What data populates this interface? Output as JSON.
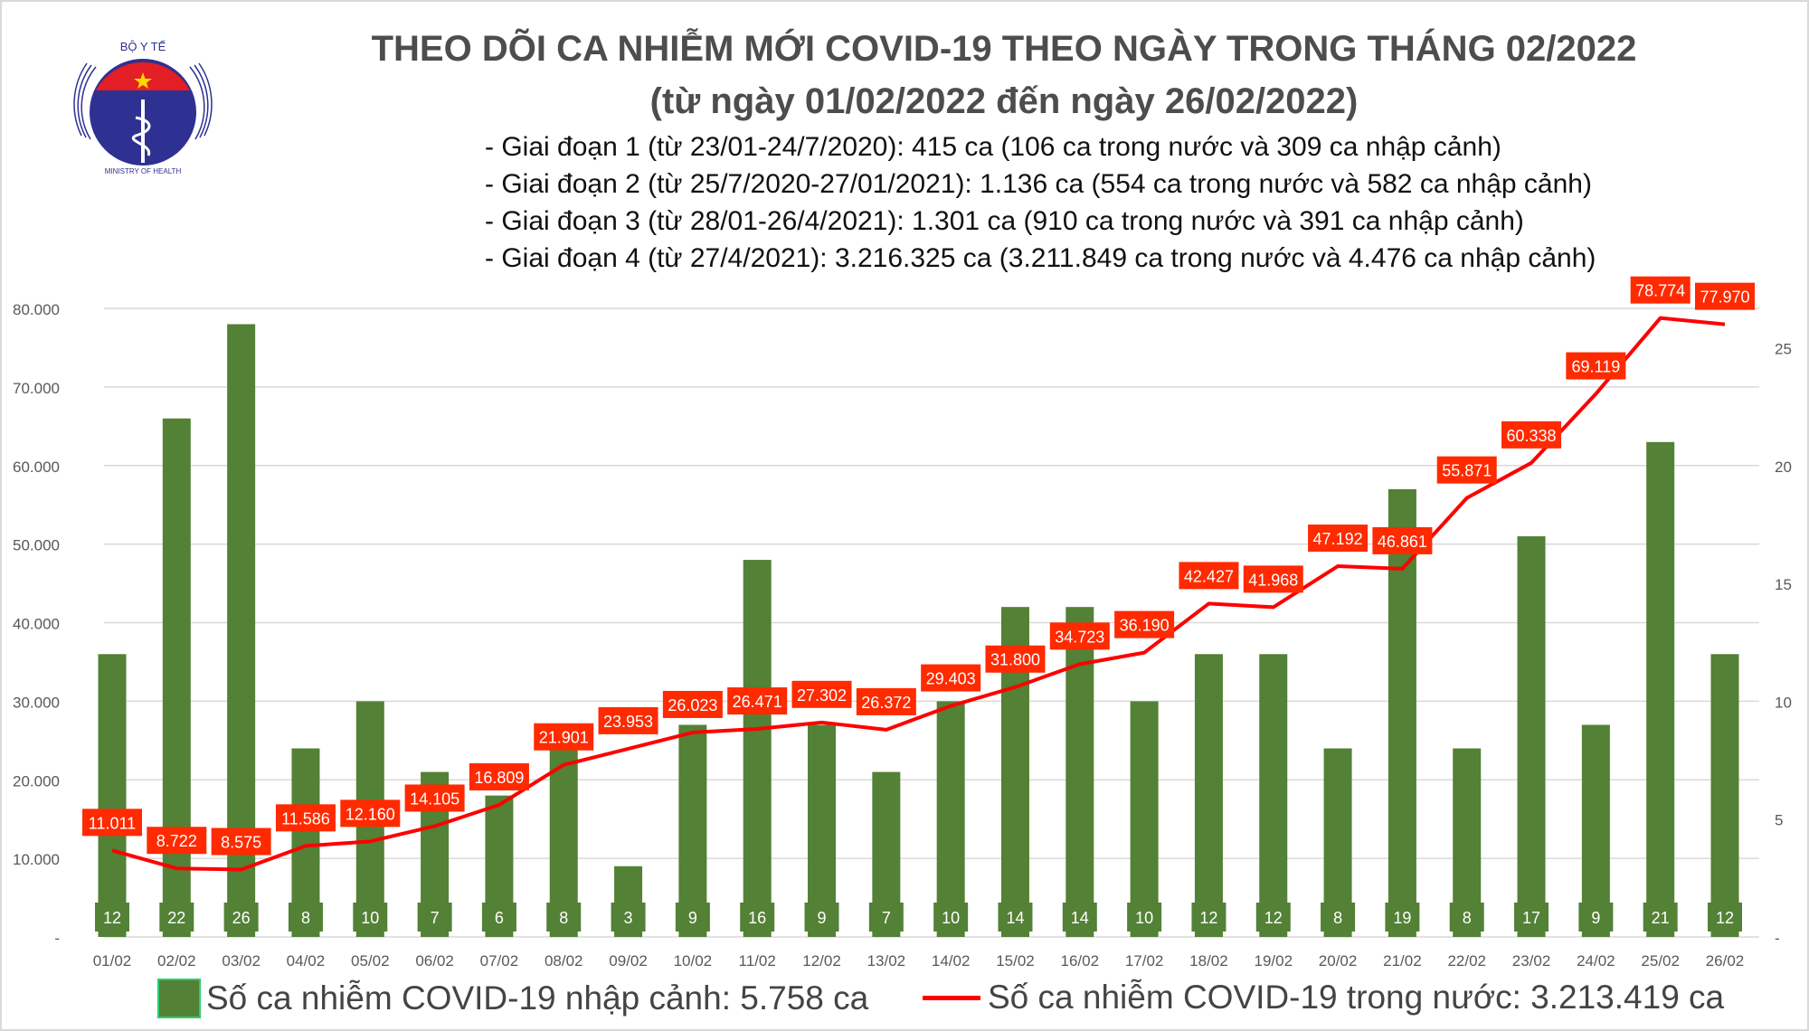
{
  "logo": {
    "text_top": "BỘ Y TẾ",
    "text_bottom": "MINISTRY OF HEALTH"
  },
  "header": {
    "title": "THEO DÕI CA NHIỄM MỚI COVID-19 THEO NGÀY TRONG THÁNG 02/2022",
    "subtitle": "(từ ngày 01/02/2022 đến ngày 26/02/2022)",
    "bullets": [
      "- Giai đoạn 1 (từ 23/01-24/7/2020): 415 ca (106 ca trong nước và 309 ca nhập cảnh)",
      "- Giai đoạn 2 (từ 25/7/2020-27/01/2021): 1.136 ca (554 ca trong nước và 582 ca nhập cảnh)",
      "- Giai đoạn 3 (từ 28/01-26/4/2021): 1.301 ca (910 ca trong nước và 391 ca nhập cảnh)",
      "- Giai đoạn 4 (từ 27/4/2021): 3.216.325 ca (3.211.849 ca trong nước và 4.476 ca nhập cảnh)"
    ]
  },
  "chart_data": {
    "type": "bar+line",
    "categories": [
      "01/02",
      "02/02",
      "03/02",
      "04/02",
      "05/02",
      "06/02",
      "07/02",
      "08/02",
      "09/02",
      "10/02",
      "11/02",
      "12/02",
      "13/02",
      "14/02",
      "15/02",
      "16/02",
      "17/02",
      "18/02",
      "19/02",
      "20/02",
      "21/02",
      "22/02",
      "23/02",
      "24/02",
      "25/02",
      "26/02"
    ],
    "series": [
      {
        "name": "Số ca nhiễm COVID-19 nhập cảnh: 5.758 ca",
        "type": "bar",
        "axis": "right",
        "color": "#538135",
        "values": [
          12,
          22,
          26,
          8,
          10,
          7,
          6,
          8,
          3,
          9,
          16,
          9,
          7,
          10,
          14,
          14,
          10,
          12,
          12,
          8,
          19,
          8,
          17,
          9,
          21,
          12
        ],
        "labels": [
          "12",
          "22",
          "26",
          "8",
          "10",
          "7",
          "6",
          "8",
          "3",
          "9",
          "16",
          "9",
          "7",
          "10",
          "14",
          "14",
          "10",
          "12",
          "12",
          "8",
          "19",
          "8",
          "17",
          "9",
          "21",
          "12"
        ]
      },
      {
        "name": "Số ca nhiễm COVID-19 trong nước: 3.213.419 ca",
        "type": "line",
        "axis": "left",
        "color": "#ff0000",
        "values": [
          11011,
          8722,
          8575,
          11586,
          12160,
          14105,
          16809,
          21901,
          23953,
          26023,
          26471,
          27302,
          26372,
          29403,
          31800,
          34723,
          36190,
          42427,
          41968,
          47192,
          46861,
          55871,
          60338,
          69119,
          78774,
          77970
        ],
        "labels": [
          "11.011",
          "8.722",
          "8.575",
          "11.586",
          "12.160",
          "14.105",
          "16.809",
          "21.901",
          "23.953",
          "26.023",
          "26.471",
          "27.302",
          "26.372",
          "29.403",
          "31.800",
          "34.723",
          "36.190",
          "42.427",
          "41.968",
          "47.192",
          "46.861",
          "55.871",
          "60.338",
          "69.119",
          "78.774",
          "77.970"
        ]
      }
    ],
    "left_axis": {
      "ylim": [
        0,
        80000
      ],
      "ticks": [
        "-",
        "10.000",
        "20.000",
        "30.000",
        "40.000",
        "50.000",
        "60.000",
        "70.000",
        "80.000"
      ]
    },
    "right_axis": {
      "ylim": [
        0,
        26.67
      ],
      "ticks": [
        "-",
        "5",
        "10",
        "15",
        "20",
        "25"
      ]
    },
    "grid": true,
    "legend": "bottom",
    "label_color": "#ff2a00"
  }
}
